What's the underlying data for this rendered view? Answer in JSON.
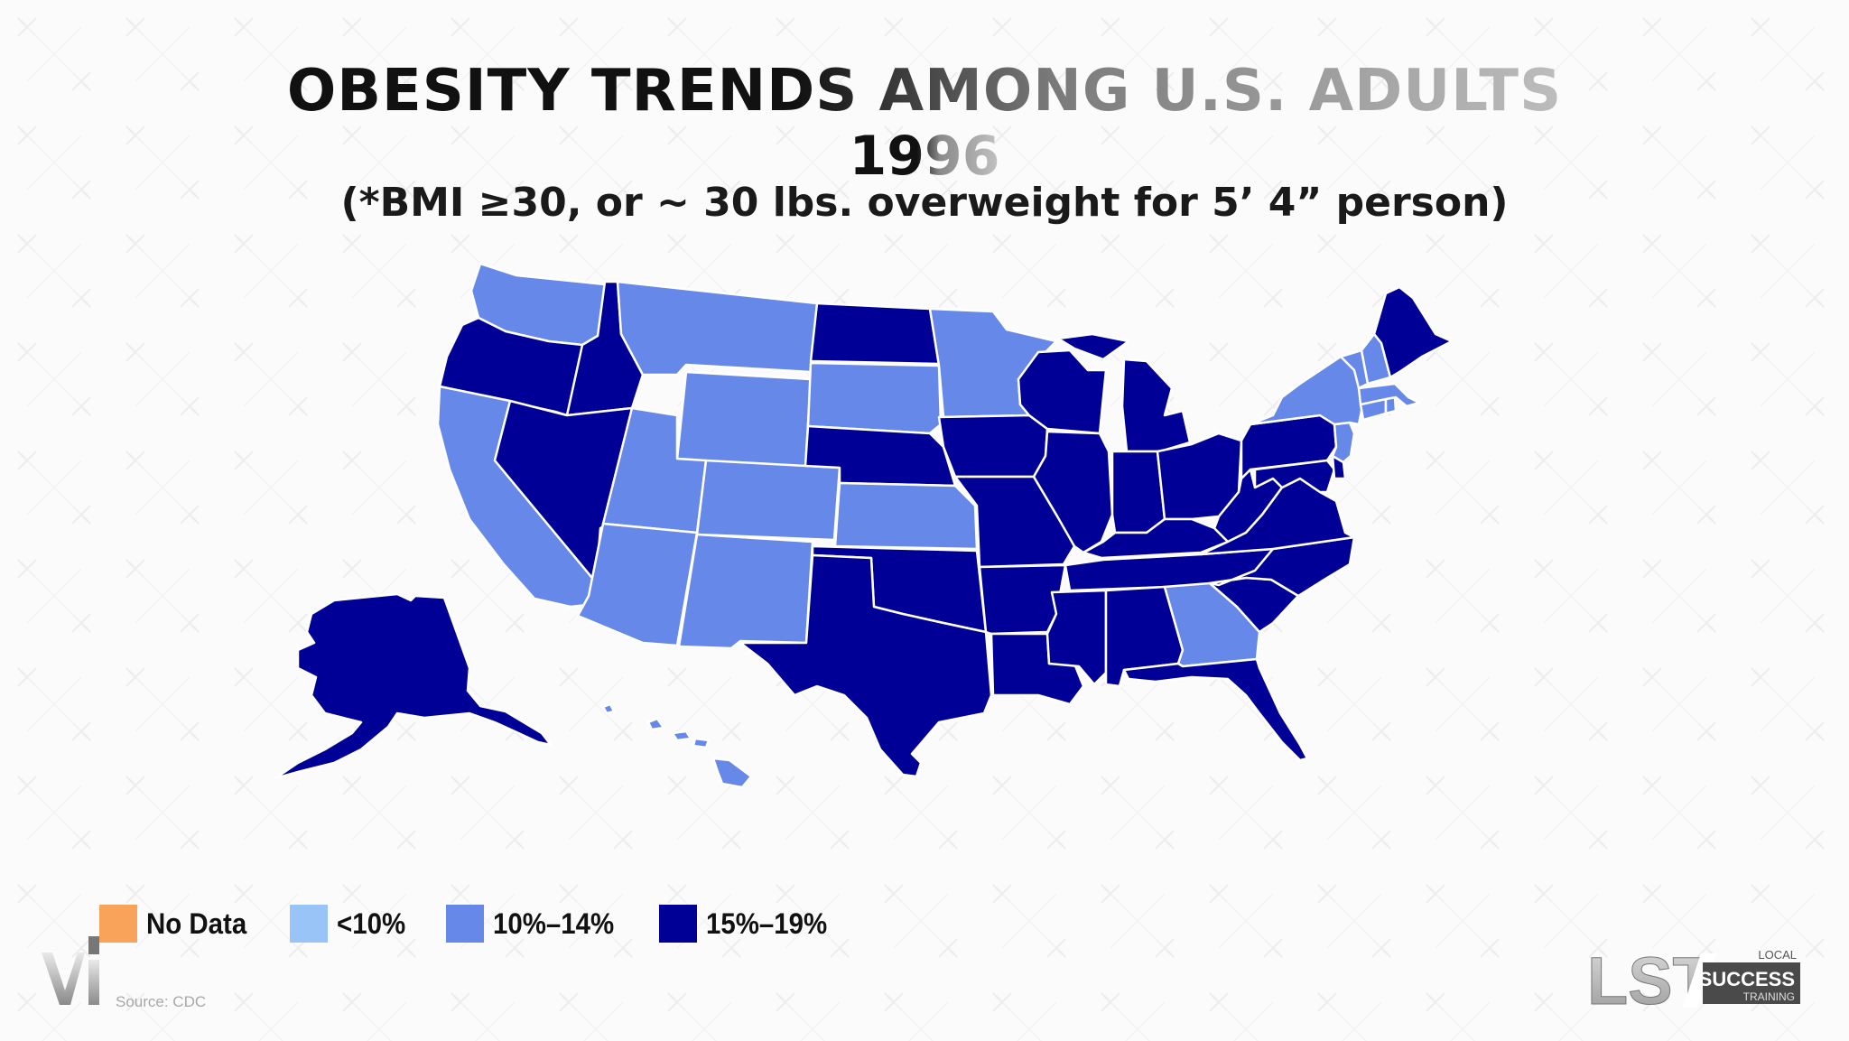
{
  "title": {
    "line1": "OBESITY TRENDS AMONG U.S. ADULTS",
    "year": "1996",
    "subtitle": "(*BMI ≥30, or ~ 30 lbs. overweight for 5’ 4” person)"
  },
  "colors": {
    "no_data": "#f9a25a",
    "lt10": "#99c4f8",
    "10to14": "#6688e8",
    "15to19": "#000096",
    "border": "#ffffff"
  },
  "legend": [
    {
      "label": "No Data",
      "color_key": "no_data"
    },
    {
      "label": "<10%",
      "color_key": "lt10"
    },
    {
      "label": "10%–14%",
      "color_key": "10to14"
    },
    {
      "label": "15%–19%",
      "color_key": "15to19"
    }
  ],
  "states": {
    "WA": "10to14",
    "OR": "15to19",
    "CA": "10to14",
    "ID": "15to19",
    "NV": "15to19",
    "MT": "10to14",
    "WY": "10to14",
    "UT": "10to14",
    "AZ": "10to14",
    "CO": "10to14",
    "NM": "10to14",
    "ND": "15to19",
    "SD": "10to14",
    "NE": "15to19",
    "KS": "10to14",
    "OK": "15to19",
    "TX": "15to19",
    "MN": "10to14",
    "IA": "15to19",
    "MO": "15to19",
    "AR": "15to19",
    "LA": "15to19",
    "WI": "15to19",
    "IL": "15to19",
    "MS": "15to19",
    "MI": "15to19",
    "IN": "15to19",
    "KY": "15to19",
    "TN": "15to19",
    "AL": "15to19",
    "OH": "15to19",
    "WV": "15to19",
    "VA": "15to19",
    "NC": "15to19",
    "SC": "15to19",
    "GA": "10to14",
    "FL": "15to19",
    "PA": "15to19",
    "NY": "10to14",
    "VT": "10to14",
    "NH": "10to14",
    "ME": "15to19",
    "MA": "10to14",
    "CT": "10to14",
    "RI": "10to14",
    "NJ": "10to14",
    "DE": "15to19",
    "MD": "15to19",
    "AK": "15to19",
    "HI": "10to14"
  },
  "source": "Source: CDC",
  "logo": {
    "letters": "LST",
    "line1": "LOCAL",
    "line2": "SUCCESS",
    "line3": "TRAINING"
  }
}
